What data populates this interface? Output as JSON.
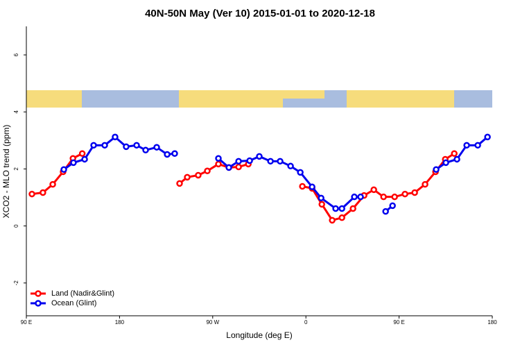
{
  "chart_data": {
    "type": "line",
    "title": "40N-50N May (Ver 10)   2015-01-01 to 2020-12-18",
    "x_label": "Longitude (deg E)",
    "y_label": "XCO2 - MLO trend (ppm)",
    "xlim": [
      90,
      540
    ],
    "xticks": [
      {
        "value": 90,
        "label": "90 E"
      },
      180,
      {
        "value": 270,
        "label": "90 W"
      },
      {
        "value": 360,
        "label": "0"
      },
      {
        "value": 450,
        "label": "90 E"
      },
      {
        "value": 540,
        "label": "180"
      }
    ],
    "ylim": [
      -3.15,
      7.0
    ],
    "yticks": [
      -2,
      0,
      2,
      4,
      6
    ],
    "legend": "bottom-left",
    "series": [
      {
        "name": "Land (Nadir&Glint)",
        "color": "#ff0000",
        "x": [
          95.4,
          106,
          115.5,
          125.5,
          135,
          144,
          190,
          238,
          245.4,
          256,
          264.8,
          275.5,
          285.6,
          295,
          304.4,
          330,
          356.6,
          366,
          375.4,
          385.4,
          394.8,
          405.5,
          416.2,
          425.6,
          435,
          445.7,
          455.7,
          465.1,
          475.1,
          485.2,
          494.6,
          503.3
        ],
        "values": [
          1.12,
          1.17,
          1.46,
          1.9,
          2.37,
          2.54,
          null,
          1.49,
          1.71,
          1.78,
          1.93,
          2.17,
          2.05,
          2.07,
          2.17,
          null,
          1.39,
          1.32,
          0.76,
          0.2,
          0.29,
          0.61,
          1.07,
          1.27,
          1.02,
          1.02,
          1.12,
          1.17,
          1.46,
          1.9,
          2.34,
          2.54
        ]
      },
      {
        "name": "Ocean (Glint)",
        "color": "#0000ee",
        "x": [
          126.2,
          135.5,
          146.3,
          155,
          165.7,
          175.7,
          186.4,
          196.5,
          205.2,
          215.9,
          226,
          233.3,
          250,
          275.5,
          285.6,
          295,
          305.7,
          315,
          325.8,
          335.1,
          345.2,
          354.6,
          366,
          374.7,
          388.7,
          394.8,
          406.8,
          412.8,
          425,
          437,
          443.7,
          460,
          485.8,
          495.2,
          505.9,
          515.3,
          526,
          535.4
        ],
        "values": [
          1.98,
          2.22,
          2.34,
          2.83,
          2.83,
          3.12,
          2.78,
          2.83,
          2.66,
          2.76,
          2.51,
          2.54,
          null,
          2.37,
          2.05,
          2.27,
          2.29,
          2.44,
          2.27,
          2.27,
          2.1,
          1.88,
          1.37,
          0.98,
          0.61,
          0.61,
          1.02,
          1.02,
          null,
          0.51,
          0.71,
          null,
          1.98,
          2.22,
          2.34,
          2.83,
          2.83,
          3.12
        ]
      }
    ]
  }
}
